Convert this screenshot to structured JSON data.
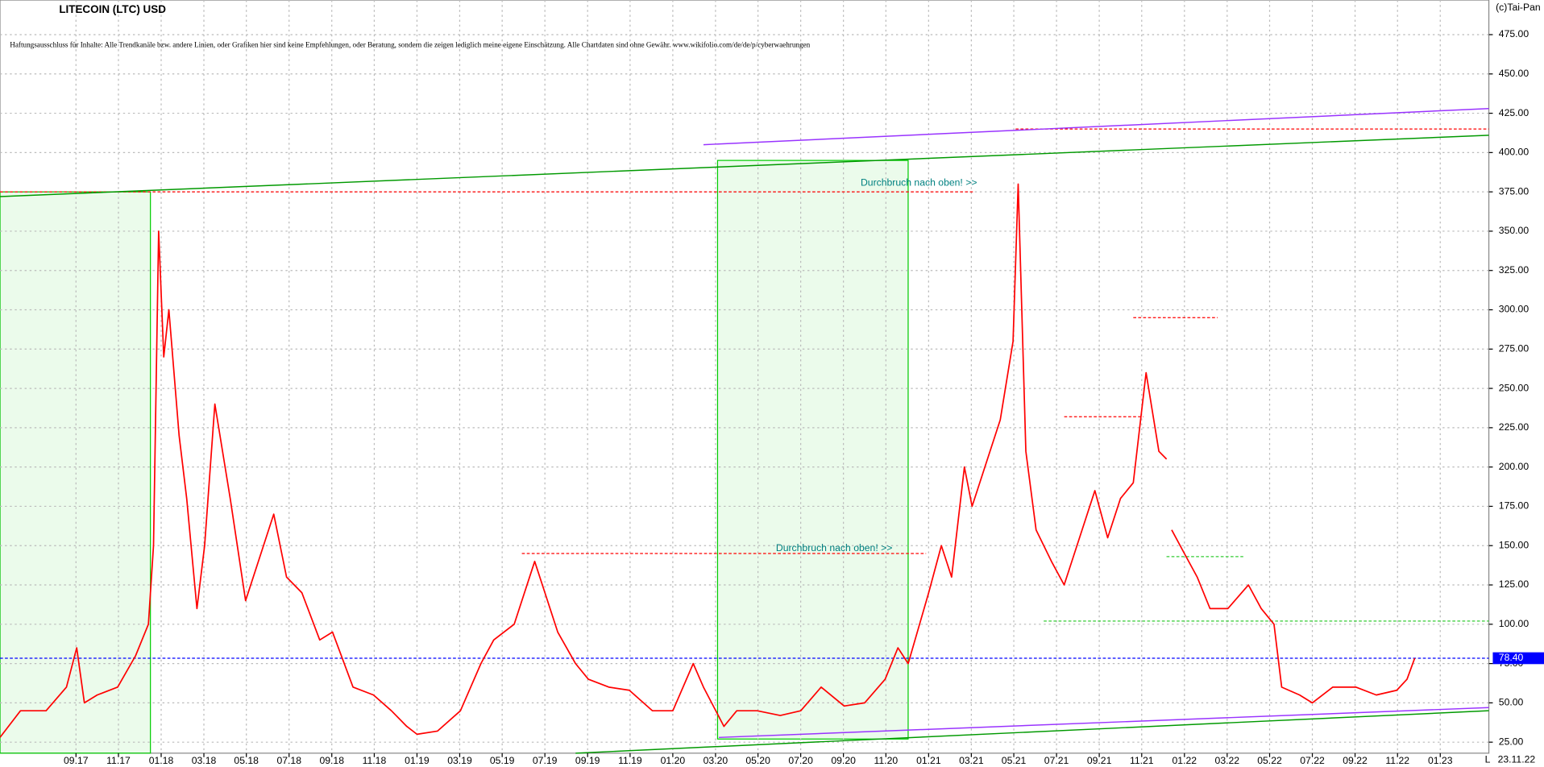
{
  "chart_data": {
    "type": "line",
    "title": "LITECOIN (LTC) USD",
    "disclaimer": "Haftungsausschluss für Inhalte: Alle Trendkanäle bzw. andere Linien, oder Grafiken hier sind keine Empfehlungen, oder Beratung, sondern die zeigen lediglich meine eigene Einschätzung. Alle Chartdaten sind ohne Gewähr. www.wikifolio.com/de/de/p/cyberwaehrungen",
    "copyright": "(c)Tai-Pan",
    "date_label": "23.11.22",
    "corner_label": "L",
    "annotations": [
      "Durchbruch nach oben! >>",
      "Durchbruch nach oben! >>"
    ],
    "grid": true,
    "xlim": [
      2017.37,
      2023.19
    ],
    "ylim": [
      18,
      497
    ],
    "xticks": [
      {
        "value": 2017.667,
        "label": "09.17"
      },
      {
        "value": 2017.833,
        "label": "11.17"
      },
      {
        "value": 2018.0,
        "label": "01.18"
      },
      {
        "value": 2018.167,
        "label": "03.18"
      },
      {
        "value": 2018.333,
        "label": "05.18"
      },
      {
        "value": 2018.5,
        "label": "07.18"
      },
      {
        "value": 2018.667,
        "label": "09.18"
      },
      {
        "value": 2018.833,
        "label": "11.18"
      },
      {
        "value": 2019.0,
        "label": "01.19"
      },
      {
        "value": 2019.167,
        "label": "03.19"
      },
      {
        "value": 2019.333,
        "label": "05.19"
      },
      {
        "value": 2019.5,
        "label": "07.19"
      },
      {
        "value": 2019.667,
        "label": "09.19"
      },
      {
        "value": 2019.833,
        "label": "11.19"
      },
      {
        "value": 2020.0,
        "label": "01.20"
      },
      {
        "value": 2020.167,
        "label": "03.20"
      },
      {
        "value": 2020.333,
        "label": "05.20"
      },
      {
        "value": 2020.5,
        "label": "07.20"
      },
      {
        "value": 2020.667,
        "label": "09.20"
      },
      {
        "value": 2020.833,
        "label": "11.20"
      },
      {
        "value": 2021.0,
        "label": "01.21"
      },
      {
        "value": 2021.167,
        "label": "03.21"
      },
      {
        "value": 2021.333,
        "label": "05.21"
      },
      {
        "value": 2021.5,
        "label": "07.21"
      },
      {
        "value": 2021.667,
        "label": "09.21"
      },
      {
        "value": 2021.833,
        "label": "11.21"
      },
      {
        "value": 2022.0,
        "label": "01.22"
      },
      {
        "value": 2022.167,
        "label": "03.22"
      },
      {
        "value": 2022.333,
        "label": "05.22"
      },
      {
        "value": 2022.5,
        "label": "07.22"
      },
      {
        "value": 2022.667,
        "label": "09.22"
      },
      {
        "value": 2022.833,
        "label": "11.22"
      },
      {
        "value": 2023.0,
        "label": "01.23"
      }
    ],
    "yticks": [
      {
        "value": 25,
        "label": "25.00"
      },
      {
        "value": 50,
        "label": "50.00"
      },
      {
        "value": 75,
        "label": "75.00"
      },
      {
        "value": 100,
        "label": "100.00"
      },
      {
        "value": 125,
        "label": "125.00"
      },
      {
        "value": 150,
        "label": "150.00"
      },
      {
        "value": 175,
        "label": "175.00"
      },
      {
        "value": 200,
        "label": "200.00"
      },
      {
        "value": 225,
        "label": "225.00"
      },
      {
        "value": 250,
        "label": "250.00"
      },
      {
        "value": 275,
        "label": "275.00"
      },
      {
        "value": 300,
        "label": "300.00"
      },
      {
        "value": 325,
        "label": "325.00"
      },
      {
        "value": 350,
        "label": "350.00"
      },
      {
        "value": 375,
        "label": "375.00"
      },
      {
        "value": 400,
        "label": "400.00"
      },
      {
        "value": 425,
        "label": "425.00"
      },
      {
        "value": 450,
        "label": "450.00"
      },
      {
        "value": 475,
        "label": "475.00"
      }
    ],
    "current_price": {
      "value": 78.4,
      "label": "78.40",
      "color": "#0000ff"
    },
    "series": [
      {
        "color": "#ff0000",
        "x": [
          2017.37,
          2017.45,
          2017.55,
          2017.63,
          2017.67,
          2017.7,
          2017.75,
          2017.83,
          2017.9,
          2017.95,
          2017.97,
          2017.99,
          2018.01,
          2018.03,
          2018.07,
          2018.1,
          2018.14,
          2018.17,
          2018.21,
          2018.27,
          2018.33,
          2018.4,
          2018.44,
          2018.49,
          2018.55,
          2018.62,
          2018.67,
          2018.75,
          2018.83,
          2018.9,
          2018.96,
          2019.0,
          2019.08,
          2019.17,
          2019.25,
          2019.3,
          2019.38,
          2019.46,
          2019.5,
          2019.55,
          2019.62,
          2019.67,
          2019.75,
          2019.83,
          2019.92,
          2020.0,
          2020.08,
          2020.12,
          2020.2,
          2020.25,
          2020.33,
          2020.42,
          2020.5,
          2020.58,
          2020.67,
          2020.75,
          2020.83,
          2020.88,
          2020.92,
          2021.0,
          2021.05,
          2021.09,
          2021.14,
          2021.17,
          2021.22,
          2021.28,
          2021.33,
          2021.35,
          2021.38,
          2021.42,
          2021.48,
          2021.53,
          2021.58,
          2021.65,
          2021.7,
          2021.75,
          2021.8,
          2021.85,
          2021.9,
          2021.93,
          2021.94,
          2021.95,
          2022.0,
          2022.05,
          2022.1,
          2022.17,
          2022.25,
          2022.3,
          2022.35,
          2022.38,
          2022.45,
          2022.5,
          2022.58,
          2022.67,
          2022.75,
          2022.83,
          2022.87,
          2022.9
        ],
        "values": [
          28,
          45,
          45,
          60,
          85,
          50,
          55,
          60,
          80,
          100,
          150,
          350,
          270,
          300,
          220,
          180,
          110,
          150,
          240,
          180,
          115,
          150,
          170,
          130,
          120,
          90,
          95,
          60,
          55,
          45,
          35,
          30,
          32,
          45,
          75,
          90,
          100,
          140,
          120,
          95,
          75,
          65,
          60,
          58,
          45,
          45,
          75,
          60,
          35,
          45,
          45,
          42,
          45,
          60,
          48,
          50,
          65,
          85,
          75,
          120,
          150,
          130,
          200,
          175,
          200,
          230,
          280,
          380,
          210,
          160,
          140,
          125,
          150,
          185,
          155,
          180,
          190,
          260,
          210,
          205,
          null,
          160,
          145,
          130,
          110,
          110,
          125,
          110,
          100,
          60,
          55,
          50,
          60,
          60,
          55,
          58,
          65,
          78.4
        ]
      }
    ],
    "levels": [
      {
        "value": 375,
        "x": [
          2017.37,
          2021.18
        ],
        "color": "#ff0000"
      },
      {
        "value": 415,
        "x": [
          2021.34,
          2023.19
        ],
        "color": "#ff0000"
      },
      {
        "value": 145,
        "x": [
          2019.41,
          2020.99
        ],
        "color": "#ff0000"
      },
      {
        "value": 232,
        "x": [
          2021.53,
          2021.84
        ],
        "color": "#ff0000"
      },
      {
        "value": 295,
        "x": [
          2021.8,
          2022.13
        ],
        "color": "#ff0000"
      },
      {
        "value": 143,
        "x": [
          2021.93,
          2022.23
        ],
        "color": "#33cc33"
      },
      {
        "value": 102,
        "x": [
          2021.45,
          2023.19
        ],
        "color": "#33cc33"
      }
    ],
    "trendlines": [
      {
        "x": [
          2017.37,
          2023.19
        ],
        "y": [
          372,
          411
        ],
        "color": "#009900"
      },
      {
        "x": [
          2020.12,
          2023.19
        ],
        "y": [
          405,
          428
        ],
        "color": "#9933ff"
      },
      {
        "x": [
          2019.62,
          2023.19
        ],
        "y": [
          18,
          45
        ],
        "color": "#009900"
      },
      {
        "x": [
          2020.18,
          2023.19
        ],
        "y": [
          28,
          47
        ],
        "color": "#9933ff"
      }
    ],
    "zones": [
      {
        "x": [
          2017.37,
          2017.958
        ],
        "y": [
          18,
          375
        ],
        "color": "#00cc00"
      },
      {
        "x": [
          2020.175,
          2020.92
        ],
        "y": [
          27,
          395
        ],
        "color": "#00cc00"
      }
    ]
  }
}
